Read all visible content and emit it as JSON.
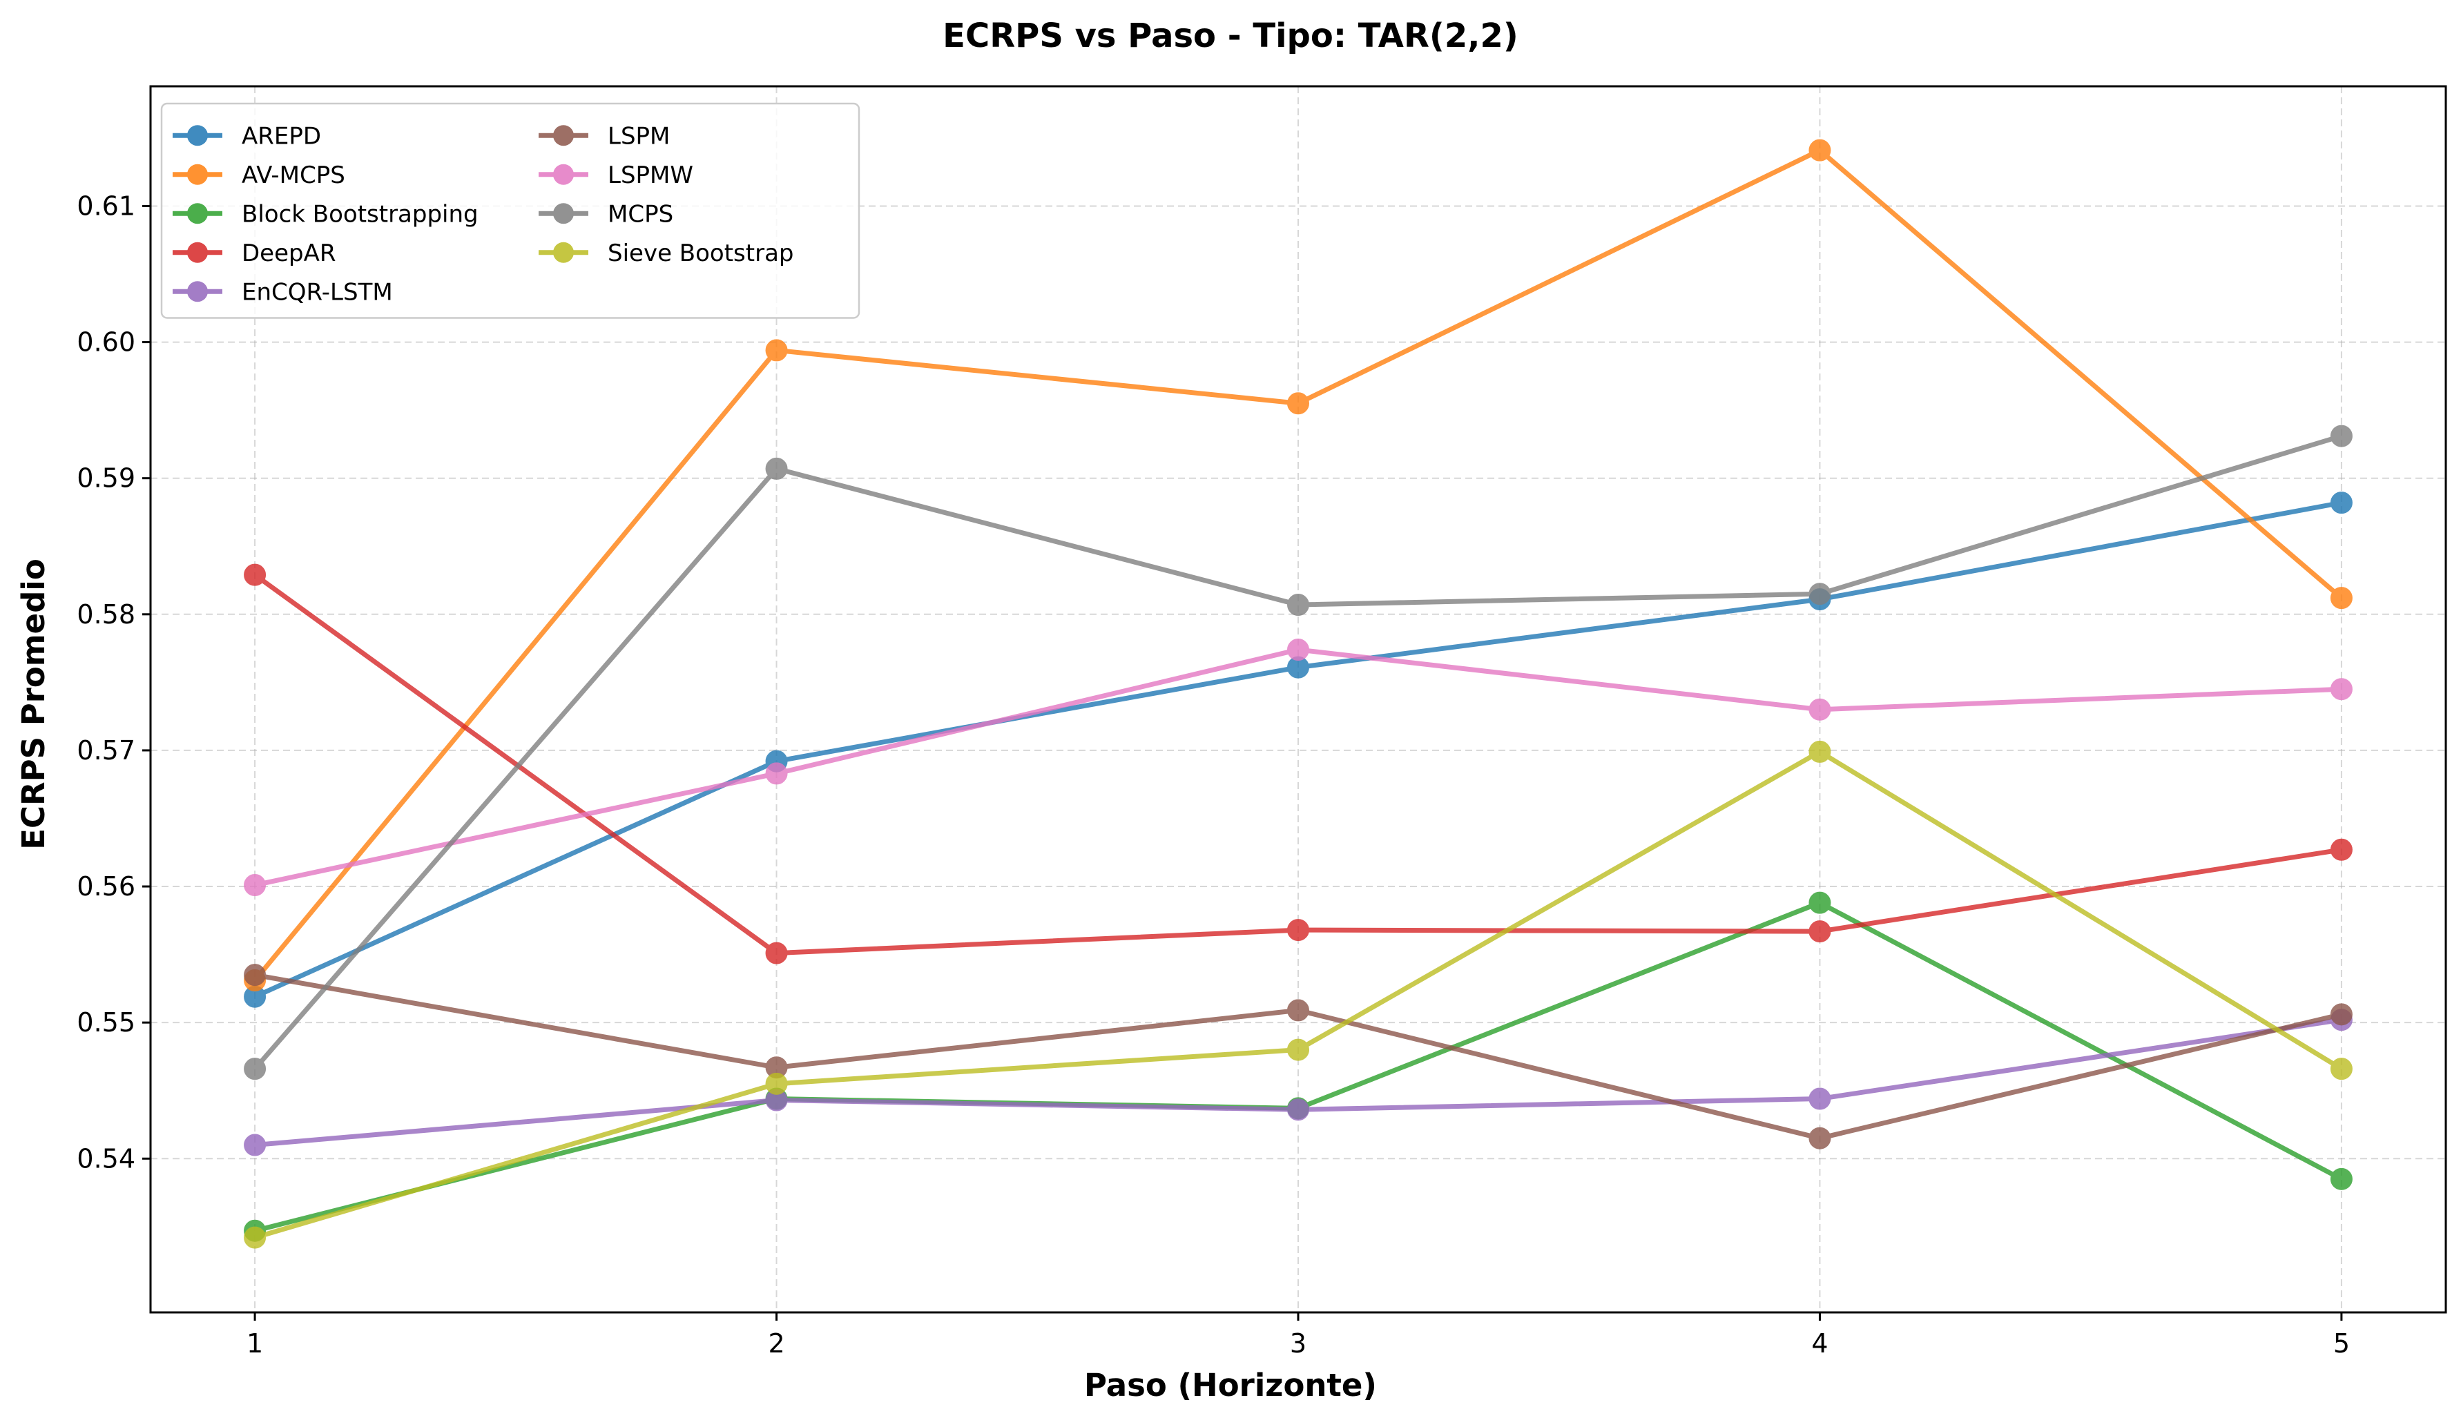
{
  "chart_data": {
    "type": "line",
    "title": "ECRPS vs Paso - Tipo: TAR(2,2)",
    "xlabel": "Paso (Horizonte)",
    "ylabel": "ECRPS Promedio",
    "x": [
      1,
      2,
      3,
      4,
      5
    ],
    "x_ticks": [
      "1",
      "2",
      "3",
      "4",
      "5"
    ],
    "xlim": [
      0.8,
      5.2
    ],
    "ylim": [
      0.5287,
      0.6188
    ],
    "y_ticks": [
      "0.54",
      "0.55",
      "0.56",
      "0.57",
      "0.58",
      "0.59",
      "0.60",
      "0.61"
    ],
    "y_tick_values": [
      0.54,
      0.55,
      0.56,
      0.57,
      0.58,
      0.59,
      0.6,
      0.61
    ],
    "grid": true,
    "legend_position": "top-left",
    "legend_columns": 2,
    "series": [
      {
        "name": "AREPD",
        "color": "#1f77b4",
        "values": [
          0.5519,
          0.5692,
          0.5761,
          0.5811,
          0.5882
        ]
      },
      {
        "name": "AV-MCPS",
        "color": "#ff7f0e",
        "values": [
          0.5531,
          0.5994,
          0.5955,
          0.6141,
          0.5812
        ]
      },
      {
        "name": "Block Bootstrapping",
        "color": "#2ca02c",
        "values": [
          0.5347,
          0.5444,
          0.5437,
          0.5588,
          0.5385
        ]
      },
      {
        "name": "DeepAR",
        "color": "#d62728",
        "values": [
          0.5829,
          0.5551,
          0.5568,
          0.5567,
          0.5627
        ]
      },
      {
        "name": "EnCQR-LSTM",
        "color": "#9467bd",
        "values": [
          0.541,
          0.5443,
          0.5436,
          0.5444,
          0.5502
        ]
      },
      {
        "name": "LSPM",
        "color": "#8c564b",
        "values": [
          0.5535,
          0.5467,
          0.5509,
          0.5415,
          0.5506
        ]
      },
      {
        "name": "LSPMW",
        "color": "#e377c2",
        "values": [
          0.5601,
          0.5683,
          0.5774,
          0.573,
          0.5745
        ]
      },
      {
        "name": "MCPS",
        "color": "#7f7f7f",
        "values": [
          0.5466,
          0.5907,
          0.5807,
          0.5815,
          0.5931
        ]
      },
      {
        "name": "Sieve Bootstrap",
        "color": "#bcbd22",
        "values": [
          0.5342,
          0.5455,
          0.548,
          0.5699,
          0.5466
        ]
      }
    ]
  }
}
